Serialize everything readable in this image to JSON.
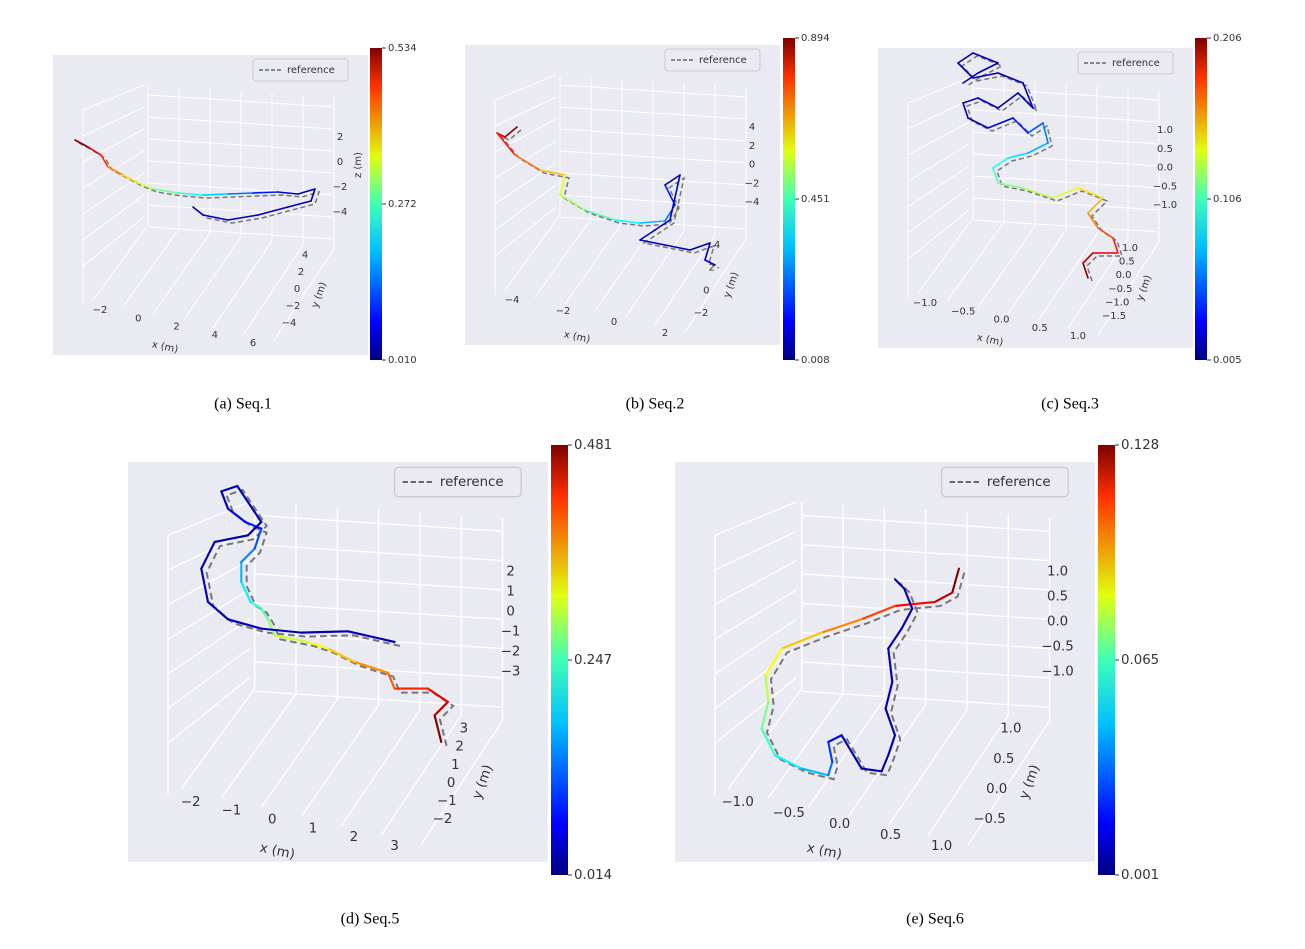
{
  "panels": [
    {
      "caption": "(a)  Seq.1",
      "legend": "reference",
      "x_label": "x (m)",
      "y_label": "y (m)",
      "z_label": "z (m)",
      "x_ticks": [
        "−2",
        "0",
        "2",
        "4",
        "6"
      ],
      "y_ticks": [
        "4",
        "2",
        "0",
        "−2",
        "−4"
      ],
      "z_ticks": [
        "2",
        "0",
        "−2",
        "−4"
      ],
      "colorbar": [
        "0.534",
        "0.272",
        "0.010"
      ]
    },
    {
      "caption": "(b)  Seq.2",
      "legend": "reference",
      "x_label": "x (m)",
      "y_label": "y (m)",
      "x_ticks": [
        "−4",
        "−2",
        "0",
        "2"
      ],
      "y_ticks": [
        "4",
        "2",
        "0",
        "−2"
      ],
      "z_ticks": [
        "4",
        "2",
        "0",
        "−2",
        "−4"
      ],
      "colorbar": [
        "0.894",
        "0.451",
        "0.008"
      ]
    },
    {
      "caption": "(c)  Seq.3",
      "legend": "reference",
      "x_label": "x (m)",
      "y_label": "y (m)",
      "x_ticks": [
        "−1.0",
        "−0.5",
        "0.0",
        "0.5",
        "1.0"
      ],
      "y_ticks": [
        "1.0",
        "0.5",
        "0.0",
        "−0.5",
        "−1.0",
        "−1.5"
      ],
      "z_ticks": [
        "1.0",
        "0.5",
        "0.0",
        "−0.5",
        "−1.0"
      ],
      "colorbar": [
        "0.206",
        "0.106",
        "0.005"
      ]
    },
    {
      "caption": "(d)  Seq.5",
      "legend": "reference",
      "x_label": "x (m)",
      "y_label": "y (m)",
      "x_ticks": [
        "−2",
        "−1",
        "0",
        "1",
        "2",
        "3"
      ],
      "y_ticks": [
        "3",
        "2",
        "1",
        "0",
        "−1",
        "−2"
      ],
      "z_ticks": [
        "2",
        "1",
        "0",
        "−1",
        "−2",
        "−3"
      ],
      "colorbar": [
        "0.481",
        "0.247",
        "0.014"
      ]
    },
    {
      "caption": "(e)  Seq.6",
      "legend": "reference",
      "x_label": "x (m)",
      "y_label": "y (m)",
      "x_ticks": [
        "−1.0",
        "−0.5",
        "0.0",
        "0.5",
        "1.0"
      ],
      "y_ticks": [
        "1.0",
        "0.5",
        "0.0",
        "−0.5"
      ],
      "z_ticks": [
        "1.0",
        "0.5",
        "0.0",
        "−0.5",
        "−1.0"
      ],
      "colorbar": [
        "0.128",
        "0.065",
        "0.001"
      ]
    }
  ]
}
